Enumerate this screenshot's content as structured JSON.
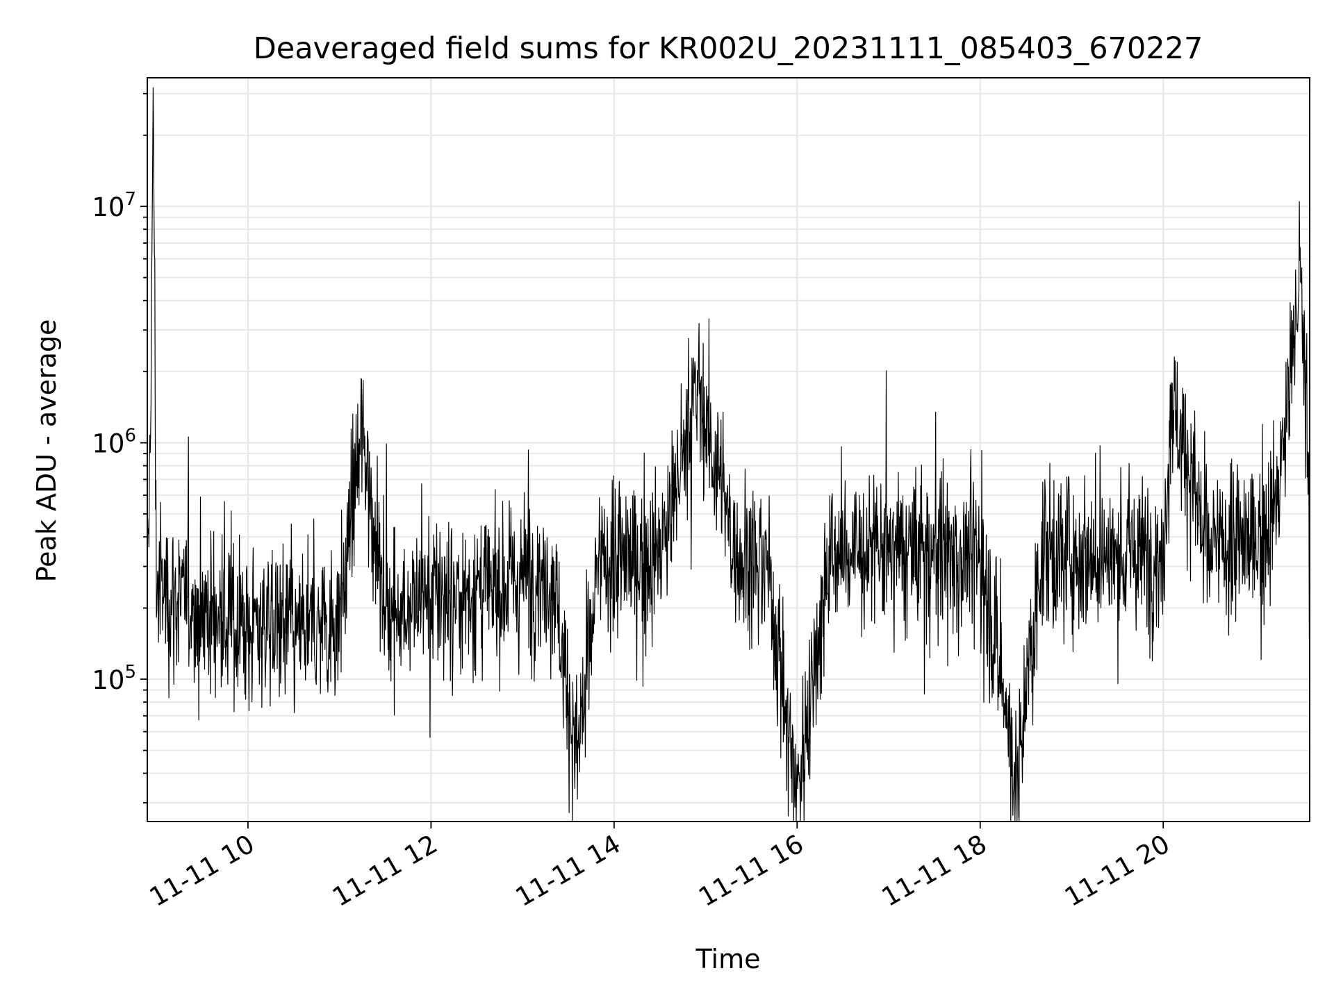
{
  "chart_data": {
    "type": "line",
    "title": "Deaveraged field sums for KR002U_20231111_085403_670227",
    "xlabel": "Time",
    "ylabel": "Peak ADU - average",
    "x_range": [
      "2023-11-11 08:54",
      "2023-11-11 21:36"
    ],
    "y_scale": "log",
    "ylim": [
      25000,
      35000000
    ],
    "grid": true,
    "line_color": "#000000",
    "x_ticks": [
      {
        "t": "2023-11-11 10:00",
        "label": "11-11 10"
      },
      {
        "t": "2023-11-11 12:00",
        "label": "11-11 12"
      },
      {
        "t": "2023-11-11 14:00",
        "label": "11-11 14"
      },
      {
        "t": "2023-11-11 16:00",
        "label": "11-11 16"
      },
      {
        "t": "2023-11-11 18:00",
        "label": "11-11 18"
      },
      {
        "t": "2023-11-11 20:00",
        "label": "11-11 20"
      }
    ],
    "y_ticks": [
      {
        "value": 100000,
        "base": "10",
        "exp": "5"
      },
      {
        "value": 1000000,
        "base": "10",
        "exp": "6"
      },
      {
        "value": 10000000,
        "base": "10",
        "exp": "7"
      }
    ],
    "series": [
      {
        "points": [
          [
            "2023-11-11 08:54",
            180000
          ],
          [
            "2023-11-11 08:56",
            1300000
          ],
          [
            "2023-11-11 08:58",
            27000000
          ],
          [
            "2023-11-11 09:00",
            250000
          ],
          [
            "2023-11-11 09:10",
            220000
          ],
          [
            "2023-11-11 09:20",
            210000
          ],
          [
            "2023-11-11 09:30",
            200000
          ],
          [
            "2023-11-11 09:40",
            180000
          ],
          [
            "2023-11-11 09:50",
            170000
          ],
          [
            "2023-11-11 10:00",
            165000
          ],
          [
            "2023-11-11 10:10",
            175000
          ],
          [
            "2023-11-11 10:20",
            185000
          ],
          [
            "2023-11-11 10:30",
            160000
          ],
          [
            "2023-11-11 10:40",
            150000
          ],
          [
            "2023-11-11 10:50",
            170000
          ],
          [
            "2023-11-11 11:00",
            180000
          ],
          [
            "2023-11-11 11:15",
            1100000
          ],
          [
            "2023-11-11 11:30",
            200000
          ],
          [
            "2023-11-11 11:45",
            210000
          ],
          [
            "2023-11-11 12:00",
            220000
          ],
          [
            "2023-11-11 12:20",
            230000
          ],
          [
            "2023-11-11 12:40",
            240000
          ],
          [
            "2023-11-11 13:00",
            270000
          ],
          [
            "2023-11-11 13:20",
            290000
          ],
          [
            "2023-11-11 13:35",
            45000
          ],
          [
            "2023-11-11 13:50",
            300000
          ],
          [
            "2023-11-11 14:10",
            320000
          ],
          [
            "2023-11-11 14:30",
            330000
          ],
          [
            "2023-11-11 14:55",
            1750000
          ],
          [
            "2023-11-11 15:20",
            330000
          ],
          [
            "2023-11-11 15:40",
            320000
          ],
          [
            "2023-11-11 16:00",
            33000
          ],
          [
            "2023-11-11 16:20",
            330000
          ],
          [
            "2023-11-11 16:40",
            340000
          ],
          [
            "2023-11-11 17:00",
            340000
          ],
          [
            "2023-11-11 17:20",
            350000
          ],
          [
            "2023-11-11 17:40",
            340000
          ],
          [
            "2023-11-11 18:00",
            350000
          ],
          [
            "2023-11-11 18:25",
            36000
          ],
          [
            "2023-11-11 18:40",
            350000
          ],
          [
            "2023-11-11 19:00",
            340000
          ],
          [
            "2023-11-11 19:30",
            330000
          ],
          [
            "2023-11-11 20:00",
            340000
          ],
          [
            "2023-11-11 20:05",
            1600000
          ],
          [
            "2023-11-11 20:30",
            350000
          ],
          [
            "2023-11-11 21:00",
            380000
          ],
          [
            "2023-11-11 21:15",
            550000
          ],
          [
            "2023-11-11 21:30",
            5600000
          ],
          [
            "2023-11-11 21:36",
            600000
          ]
        ]
      }
    ]
  }
}
